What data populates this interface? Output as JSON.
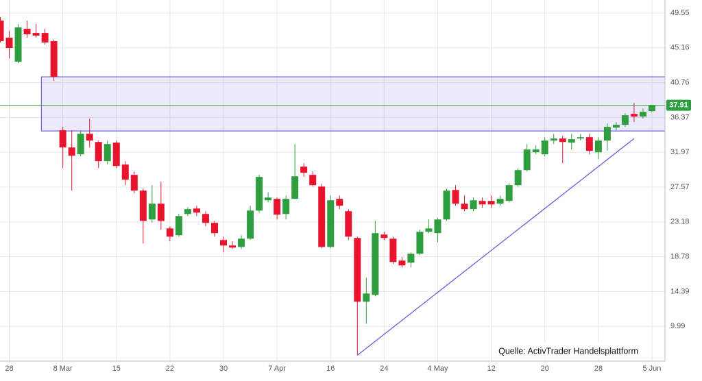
{
  "chart_data": {
    "type": "candlestick",
    "categories": [
      null,
      "28",
      null,
      null,
      null,
      null,
      null,
      "8 Mar",
      null,
      null,
      null,
      null,
      null,
      "15",
      null,
      null,
      null,
      null,
      null,
      "22",
      null,
      null,
      null,
      null,
      null,
      "30",
      null,
      null,
      null,
      null,
      null,
      "7 Apr",
      null,
      null,
      null,
      null,
      null,
      "16",
      null,
      null,
      null,
      null,
      null,
      "24",
      null,
      null,
      null,
      null,
      null,
      "4 May",
      null,
      null,
      null,
      null,
      null,
      "12",
      null,
      null,
      null,
      null,
      null,
      "20",
      null,
      null,
      null,
      null,
      null,
      "28",
      null,
      null,
      null,
      null,
      null,
      "5 Jun"
    ],
    "open": [
      48.6,
      46.44,
      43.41,
      47.56,
      47.04,
      47.04,
      46.0,
      34.75,
      32.58,
      31.72,
      34.31,
      33.27,
      30.85,
      33.19,
      30.42,
      29.12,
      27.13,
      23.49,
      25.48,
      22.36,
      21.5,
      24.18,
      24.87,
      24.18,
      23.06,
      20.89,
      20.2,
      20.02,
      21.06,
      24.61,
      25.91,
      26.09,
      24.18,
      26.09,
      30.16,
      29.12,
      27.64,
      20.02,
      26.09,
      24.53,
      21.15,
      13.1,
      13.96,
      21.58,
      21.06,
      18.29,
      18.03,
      19.16,
      21.93,
      21.76,
      23.49,
      27.21,
      25.48,
      24.79,
      25.83,
      25.83,
      25.48,
      25.83,
      27.82,
      29.72,
      31.97,
      31.72,
      33.45,
      33.71,
      33.19,
      33.71,
      33.88,
      31.97,
      33.45,
      35.09,
      35.44,
      36.82,
      36.48,
      37.17
    ],
    "high": [
      49.04,
      47.3,
      48.17,
      48.6,
      48.17,
      47.56,
      46.18,
      35.18,
      34.75,
      34.75,
      36.22,
      33.45,
      33.45,
      33.45,
      30.85,
      29.55,
      27.39,
      27.82,
      28.25,
      22.62,
      24.18,
      25.05,
      25.22,
      24.53,
      23.31,
      21.32,
      20.72,
      21.5,
      25.22,
      29.12,
      26.95,
      26.26,
      26.52,
      33.01,
      30.59,
      29.55,
      27.99,
      26.52,
      26.52,
      24.79,
      21.32,
      16.13,
      23.31,
      21.93,
      21.32,
      18.73,
      19.33,
      22.19,
      23.49,
      23.66,
      27.39,
      27.82,
      26.52,
      26.26,
      26.26,
      26.52,
      26.52,
      28.08,
      29.98,
      33.01,
      32.84,
      33.88,
      34.31,
      34.05,
      34.31,
      34.31,
      34.31,
      33.88,
      35.61,
      35.79,
      36.91,
      38.21,
      37.52,
      37.95
    ],
    "low": [
      45.83,
      43.84,
      43.23,
      46.44,
      46.44,
      45.57,
      40.98,
      29.98,
      27.13,
      31.46,
      32.58,
      29.98,
      30.42,
      29.98,
      27.82,
      26.78,
      20.46,
      23.06,
      22.19,
      20.72,
      21.32,
      23.92,
      23.92,
      22.62,
      21.32,
      19.33,
      19.76,
      19.76,
      20.89,
      24.35,
      25.65,
      23.49,
      23.49,
      26.09,
      28.86,
      27.64,
      19.85,
      19.85,
      24.79,
      20.89,
      6.34,
      10.32,
      13.79,
      20.89,
      17.86,
      17.43,
      17.43,
      18.98,
      21.76,
      20.63,
      23.31,
      25.22,
      24.53,
      24.53,
      24.96,
      24.96,
      25.22,
      25.65,
      27.64,
      29.55,
      31.72,
      31.46,
      33.01,
      30.59,
      32.32,
      33.45,
      31.72,
      31.11,
      32.15,
      34.75,
      35.18,
      35.79,
      36.22,
      37.08
    ],
    "close": [
      46.0,
      45.14,
      47.74,
      46.87,
      46.7,
      45.83,
      41.5,
      32.58,
      31.54,
      34.31,
      33.45,
      30.85,
      33.01,
      30.24,
      28.51,
      27.13,
      23.31,
      25.48,
      23.31,
      21.32,
      23.92,
      24.79,
      24.35,
      23.06,
      21.76,
      20.2,
      19.94,
      21.06,
      24.61,
      28.86,
      26.26,
      24.09,
      26.09,
      28.94,
      29.38,
      27.82,
      20.02,
      25.91,
      25.22,
      21.32,
      13.1,
      14.14,
      21.76,
      21.15,
      18.12,
      17.69,
      19.16,
      21.93,
      22.36,
      23.49,
      27.13,
      25.48,
      24.79,
      25.91,
      25.39,
      25.39,
      26.09,
      27.82,
      29.72,
      32.32,
      32.32,
      33.45,
      33.71,
      33.27,
      33.62,
      33.88,
      32.15,
      33.45,
      35.18,
      35.44,
      36.65,
      36.48,
      37.08,
      37.91
    ],
    "up_color": "#2e9e3e",
    "down_color": "#e8142d",
    "ylim": [
      5.6,
      51.2
    ],
    "yticks": [
      9.99,
      14.39,
      18.78,
      23.18,
      27.57,
      31.97,
      36.37,
      40.76,
      45.16,
      49.55
    ],
    "grid": true,
    "zone": {
      "x": [
        4.6,
        75.4
      ],
      "y": [
        34.66,
        41.5
      ],
      "color": "#6a5fe0"
    },
    "trendline": {
      "x": [
        40,
        71
      ],
      "y": [
        6.34,
        33.7
      ],
      "color": "#6a5fe0"
    },
    "source": "Quelle: ActivTrader Handelsplattform"
  }
}
